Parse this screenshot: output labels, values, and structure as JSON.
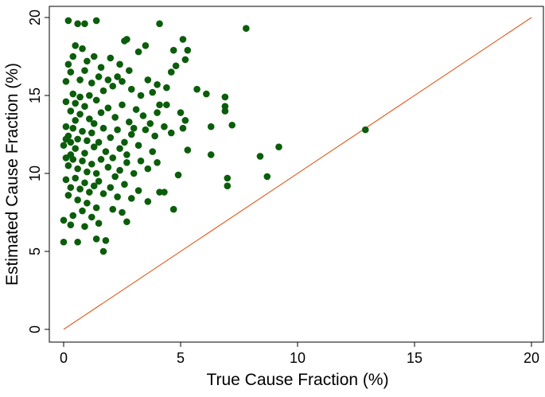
{
  "chart_data": {
    "type": "scatter",
    "title": "",
    "xlabel": "True Cause Fraction (%)",
    "ylabel": "Estimated Cause Fraction (%)",
    "xlim": [
      0,
      20
    ],
    "ylim": [
      0,
      20
    ],
    "xticks": [
      "0",
      "5",
      "10",
      "15",
      "20"
    ],
    "yticks": [
      "0",
      "5",
      "10",
      "15",
      "20"
    ],
    "grid": false,
    "legend": "none",
    "point_color": "#0b5d0b",
    "reference_line": {
      "from": [
        0,
        0
      ],
      "to": [
        20,
        20
      ],
      "color": "#e0642a",
      "label": ""
    },
    "points": [
      [
        7.8,
        19.3
      ],
      [
        12.9,
        12.8
      ],
      [
        9.2,
        11.7
      ],
      [
        8.7,
        9.8
      ],
      [
        8.4,
        11.1
      ],
      [
        7.0,
        9.2
      ],
      [
        7.0,
        9.7
      ],
      [
        6.9,
        14.9
      ],
      [
        6.9,
        14.3
      ],
      [
        7.2,
        13.1
      ],
      [
        6.9,
        14.0
      ],
      [
        6.3,
        13.0
      ],
      [
        6.3,
        11.2
      ],
      [
        6.1,
        15.1
      ],
      [
        5.7,
        15.4
      ],
      [
        5.3,
        17.9
      ],
      [
        5.1,
        18.6
      ],
      [
        5.2,
        17.3
      ],
      [
        4.7,
        17.9
      ],
      [
        4.6,
        16.5
      ],
      [
        4.1,
        19.6
      ],
      [
        3.5,
        18.2
      ],
      [
        2.7,
        18.6
      ],
      [
        2.6,
        18.5
      ],
      [
        1.4,
        19.8
      ],
      [
        0.2,
        19.8
      ],
      [
        0.6,
        19.6
      ],
      [
        0.9,
        19.6
      ],
      [
        1.7,
        5.0
      ],
      [
        1.8,
        5.7
      ],
      [
        1.4,
        5.8
      ],
      [
        0.0,
        5.6
      ],
      [
        0.6,
        5.6
      ],
      [
        0.3,
        6.7
      ],
      [
        2.7,
        6.9
      ],
      [
        4.7,
        7.7
      ],
      [
        4.9,
        9.9
      ],
      [
        4.3,
        8.8
      ],
      [
        4.1,
        8.8
      ],
      [
        5.3,
        11.5
      ],
      [
        5.1,
        12.9
      ],
      [
        5.2,
        13.4
      ],
      [
        5.0,
        13.9
      ],
      [
        4.4,
        14.4
      ],
      [
        4.1,
        14.4
      ],
      [
        0.1,
        15.9
      ],
      [
        0.2,
        17.0
      ],
      [
        0.3,
        16.5
      ],
      [
        0.5,
        18.2
      ],
      [
        0.8,
        18.0
      ],
      [
        1.0,
        17.2
      ],
      [
        1.3,
        17.5
      ],
      [
        1.6,
        16.8
      ],
      [
        2.0,
        17.4
      ],
      [
        2.3,
        16.2
      ],
      [
        2.8,
        16.6
      ],
      [
        3.2,
        17.8
      ],
      [
        3.6,
        16.0
      ],
      [
        4.0,
        15.7
      ],
      [
        4.4,
        15.5
      ],
      [
        4.8,
        16.9
      ],
      [
        3.8,
        15.2
      ],
      [
        3.3,
        15.0
      ],
      [
        2.9,
        15.4
      ],
      [
        2.5,
        15.9
      ],
      [
        2.1,
        15.6
      ],
      [
        1.7,
        15.3
      ],
      [
        1.2,
        15.8
      ],
      [
        0.7,
        16.0
      ],
      [
        0.4,
        15.1
      ],
      [
        0.1,
        14.6
      ],
      [
        0.3,
        14.0
      ],
      [
        0.5,
        14.5
      ],
      [
        0.7,
        13.8
      ],
      [
        0.9,
        14.3
      ],
      [
        1.1,
        13.5
      ],
      [
        1.4,
        14.7
      ],
      [
        1.6,
        13.9
      ],
      [
        1.9,
        14.2
      ],
      [
        2.2,
        13.6
      ],
      [
        2.5,
        14.4
      ],
      [
        2.8,
        13.3
      ],
      [
        3.1,
        14.1
      ],
      [
        3.4,
        13.7
      ],
      [
        3.7,
        13.2
      ],
      [
        4.0,
        13.9
      ],
      [
        4.3,
        13.0
      ],
      [
        4.6,
        12.6
      ],
      [
        3.9,
        12.4
      ],
      [
        3.5,
        12.8
      ],
      [
        0.1,
        13.0
      ],
      [
        0.2,
        12.4
      ],
      [
        0.4,
        12.9
      ],
      [
        0.6,
        12.2
      ],
      [
        0.8,
        12.7
      ],
      [
        1.0,
        12.1
      ],
      [
        1.2,
        12.6
      ],
      [
        1.5,
        12.0
      ],
      [
        1.7,
        12.9
      ],
      [
        2.0,
        12.3
      ],
      [
        2.3,
        12.8
      ],
      [
        2.6,
        12.0
      ],
      [
        2.9,
        12.5
      ],
      [
        3.2,
        11.8
      ],
      [
        3.0,
        12.9
      ],
      [
        2.4,
        11.6
      ],
      [
        1.8,
        11.4
      ],
      [
        1.3,
        11.7
      ],
      [
        0.9,
        11.3
      ],
      [
        0.5,
        11.6
      ],
      [
        0.1,
        11.0
      ],
      [
        0.2,
        10.5
      ],
      [
        0.4,
        10.9
      ],
      [
        0.6,
        10.3
      ],
      [
        0.8,
        10.8
      ],
      [
        1.0,
        10.1
      ],
      [
        1.2,
        10.6
      ],
      [
        1.4,
        10.0
      ],
      [
        1.6,
        10.9
      ],
      [
        1.9,
        10.4
      ],
      [
        2.1,
        11.0
      ],
      [
        2.4,
        10.2
      ],
      [
        2.7,
        10.7
      ],
      [
        3.0,
        10.0
      ],
      [
        3.3,
        10.8
      ],
      [
        3.6,
        10.3
      ],
      [
        4.0,
        10.7
      ],
      [
        3.8,
        11.4
      ],
      [
        2.2,
        9.8
      ],
      [
        1.5,
        9.5
      ],
      [
        0.1,
        9.6
      ],
      [
        0.3,
        9.1
      ],
      [
        0.5,
        9.7
      ],
      [
        0.7,
        9.0
      ],
      [
        0.9,
        9.4
      ],
      [
        1.1,
        8.8
      ],
      [
        1.3,
        9.2
      ],
      [
        1.7,
        8.7
      ],
      [
        2.0,
        9.1
      ],
      [
        2.3,
        8.5
      ],
      [
        2.6,
        9.3
      ],
      [
        2.9,
        8.4
      ],
      [
        3.2,
        8.9
      ],
      [
        3.6,
        8.2
      ],
      [
        1.0,
        8.1
      ],
      [
        0.6,
        8.3
      ],
      [
        0.2,
        8.6
      ],
      [
        1.4,
        7.8
      ],
      [
        2.1,
        7.7
      ],
      [
        2.5,
        7.5
      ],
      [
        0.0,
        7.0
      ],
      [
        0.4,
        7.3
      ],
      [
        0.8,
        7.6
      ],
      [
        1.2,
        7.2
      ],
      [
        1.5,
        6.8
      ],
      [
        0.9,
        6.6
      ],
      [
        0.3,
        12.0
      ],
      [
        0.0,
        11.8
      ],
      [
        0.1,
        12.2
      ],
      [
        0.3,
        11.2
      ],
      [
        0.5,
        13.4
      ],
      [
        0.7,
        14.9
      ],
      [
        1.1,
        15.0
      ],
      [
        1.5,
        16.2
      ],
      [
        1.9,
        16.0
      ],
      [
        2.4,
        17.0
      ],
      [
        0.4,
        17.5
      ],
      [
        0.9,
        16.6
      ],
      [
        1.3,
        13.2
      ],
      [
        2.7,
        11.2
      ]
    ]
  }
}
